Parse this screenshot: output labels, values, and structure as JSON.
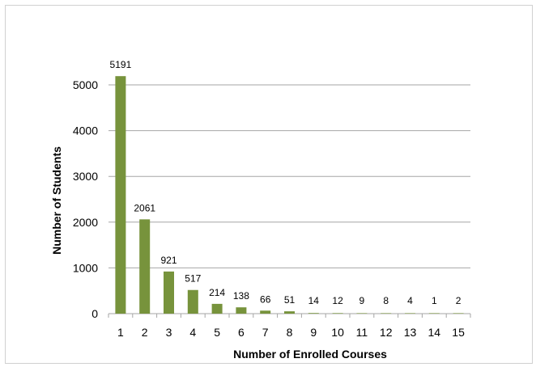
{
  "chart_data": {
    "type": "bar",
    "title": "",
    "xlabel": "Number of Enrolled Courses",
    "ylabel": "Number of Students",
    "categories": [
      "1",
      "2",
      "3",
      "4",
      "5",
      "6",
      "7",
      "8",
      "9",
      "10",
      "11",
      "12",
      "13",
      "14",
      "15"
    ],
    "values": [
      5191,
      2061,
      921,
      517,
      214,
      138,
      66,
      51,
      14,
      12,
      9,
      8,
      4,
      1,
      2
    ],
    "ylim": [
      0,
      5500
    ],
    "yticks": [
      0,
      1000,
      2000,
      3000,
      4000,
      5000
    ],
    "grid": true,
    "legend": "none",
    "bar_color": "#77933c",
    "grid_color": "#a6a6a6",
    "data_labels": true
  }
}
